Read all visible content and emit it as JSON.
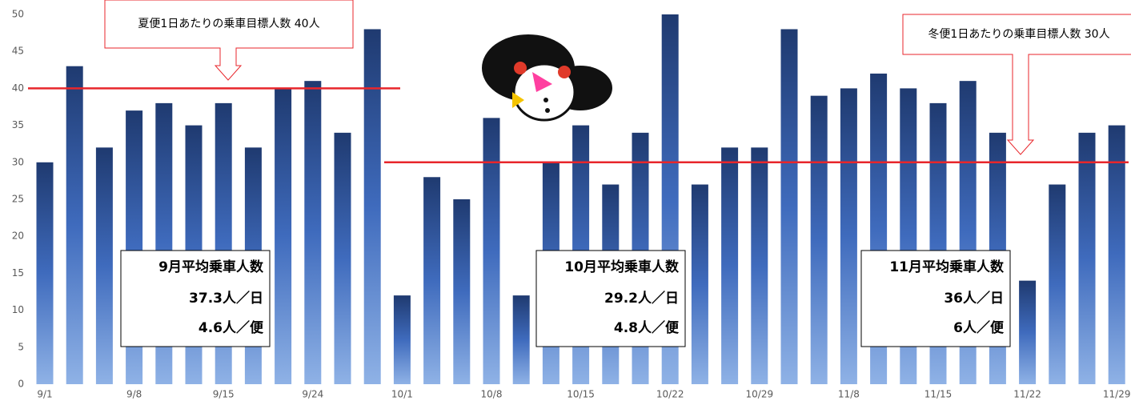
{
  "chart_data": {
    "type": "bar",
    "categories": [
      "9/1",
      null,
      null,
      "9/8",
      null,
      null,
      "9/15",
      null,
      null,
      "9/24",
      null,
      null,
      "10/1",
      null,
      null,
      "10/8",
      null,
      null,
      "10/15",
      null,
      null,
      "10/22",
      null,
      null,
      "10/29",
      null,
      null,
      "11/8",
      null,
      null,
      "11/15",
      null,
      null,
      "11/22",
      null,
      null,
      "11/29"
    ],
    "values": [
      30,
      43,
      32,
      37,
      38,
      35,
      38,
      32,
      40,
      41,
      34,
      48,
      12,
      28,
      25,
      36,
      12,
      30,
      35,
      27,
      34,
      50,
      27,
      32,
      32,
      48,
      39,
      40,
      42,
      40,
      38,
      41,
      34,
      14,
      27,
      34,
      35
    ],
    "color": "#2a4c8c",
    "ylim": [
      0,
      50
    ],
    "yticks": [
      0,
      5,
      10,
      15,
      20,
      25,
      30,
      35,
      40,
      45,
      50
    ],
    "grid": false,
    "targets": [
      {
        "value": 40,
        "color": "#e8262b",
        "label": "夏便1日あたりの乗車目標人数  40人"
      },
      {
        "value": 30,
        "color": "#e8262b",
        "label": "冬便1日あたりの乗車目標人数  30人"
      }
    ],
    "summaries": [
      {
        "title": "9月平均乗車人数",
        "per_day": "37.3人／日",
        "per_trip": "4.6人／便"
      },
      {
        "title": "10月平均乗車人数",
        "per_day": "29.2人／日",
        "per_trip": "4.8人／便"
      },
      {
        "title": "11月平均乗車人数",
        "per_day": "36人／日",
        "per_trip": "6人／便"
      }
    ]
  }
}
